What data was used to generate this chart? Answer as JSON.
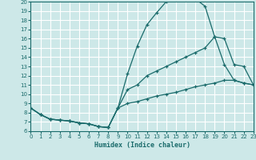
{
  "xlabel": "Humidex (Indice chaleur)",
  "bg_color": "#cde8e8",
  "grid_color": "#ffffff",
  "line_color": "#1a6b6b",
  "marker": "+",
  "xlim": [
    0,
    23
  ],
  "ylim": [
    6,
    20
  ],
  "xticks": [
    0,
    1,
    2,
    3,
    4,
    5,
    6,
    7,
    8,
    9,
    10,
    11,
    12,
    13,
    14,
    15,
    16,
    17,
    18,
    19,
    20,
    21,
    22,
    23
  ],
  "yticks": [
    6,
    7,
    8,
    9,
    10,
    11,
    12,
    13,
    14,
    15,
    16,
    17,
    18,
    19,
    20
  ],
  "series": [
    [
      [
        0,
        8.5
      ],
      [
        1,
        7.8
      ],
      [
        2,
        7.3
      ],
      [
        3,
        7.2
      ],
      [
        4,
        7.1
      ],
      [
        5,
        6.9
      ],
      [
        6,
        6.8
      ],
      [
        7,
        6.5
      ],
      [
        8,
        6.4
      ],
      [
        9,
        8.5
      ],
      [
        10,
        12.2
      ],
      [
        11,
        15.2
      ],
      [
        12,
        17.5
      ],
      [
        13,
        18.8
      ],
      [
        14,
        20.0
      ],
      [
        15,
        20.3
      ],
      [
        16,
        20.5
      ],
      [
        17,
        20.3
      ],
      [
        18,
        19.5
      ],
      [
        19,
        16.2
      ],
      [
        20,
        13.2
      ],
      [
        21,
        11.5
      ],
      [
        22,
        11.2
      ],
      [
        23,
        11.0
      ]
    ],
    [
      [
        0,
        8.5
      ],
      [
        1,
        7.8
      ],
      [
        2,
        7.3
      ],
      [
        3,
        7.2
      ],
      [
        4,
        7.1
      ],
      [
        5,
        6.9
      ],
      [
        6,
        6.8
      ],
      [
        7,
        6.5
      ],
      [
        8,
        6.4
      ],
      [
        9,
        8.5
      ],
      [
        10,
        10.5
      ],
      [
        11,
        11.0
      ],
      [
        12,
        12.0
      ],
      [
        13,
        12.5
      ],
      [
        14,
        13.0
      ],
      [
        15,
        13.5
      ],
      [
        16,
        14.0
      ],
      [
        17,
        14.5
      ],
      [
        18,
        15.0
      ],
      [
        19,
        16.2
      ],
      [
        20,
        16.0
      ],
      [
        21,
        13.2
      ],
      [
        22,
        13.0
      ],
      [
        23,
        11.0
      ]
    ],
    [
      [
        0,
        8.5
      ],
      [
        1,
        7.8
      ],
      [
        2,
        7.3
      ],
      [
        3,
        7.2
      ],
      [
        4,
        7.1
      ],
      [
        5,
        6.9
      ],
      [
        6,
        6.8
      ],
      [
        7,
        6.5
      ],
      [
        8,
        6.4
      ],
      [
        9,
        8.5
      ],
      [
        10,
        9.0
      ],
      [
        11,
        9.2
      ],
      [
        12,
        9.5
      ],
      [
        13,
        9.8
      ],
      [
        14,
        10.0
      ],
      [
        15,
        10.2
      ],
      [
        16,
        10.5
      ],
      [
        17,
        10.8
      ],
      [
        18,
        11.0
      ],
      [
        19,
        11.2
      ],
      [
        20,
        11.5
      ],
      [
        21,
        11.5
      ],
      [
        22,
        11.2
      ],
      [
        23,
        11.0
      ]
    ]
  ]
}
